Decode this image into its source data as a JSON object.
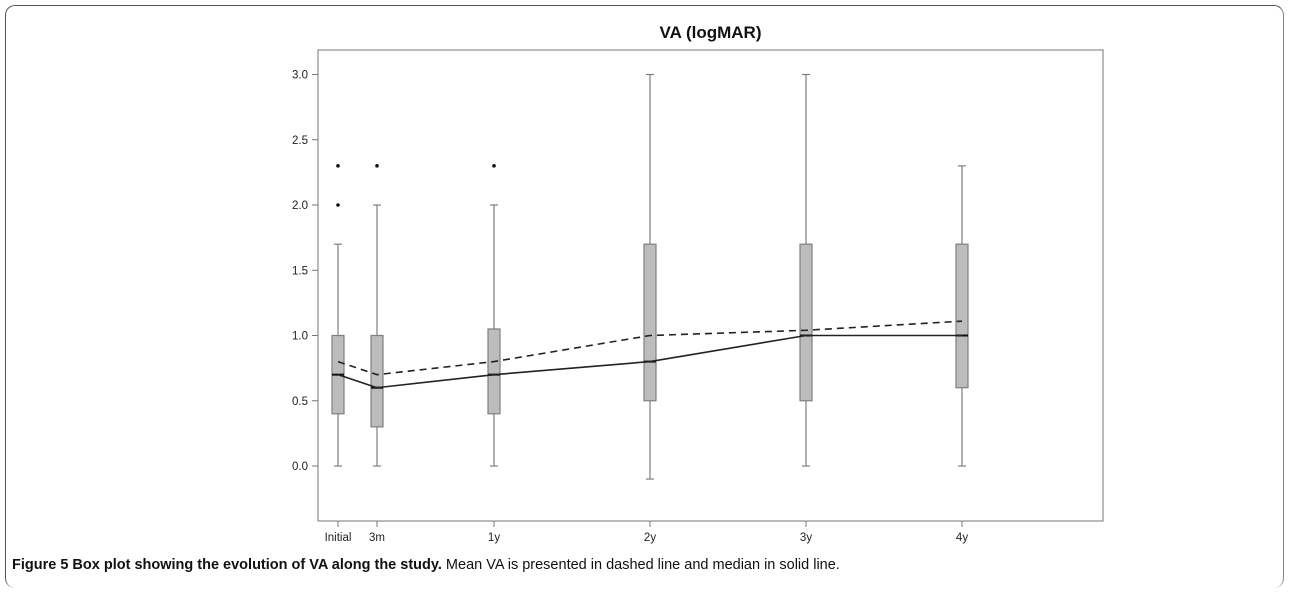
{
  "chart_data": {
    "type": "box",
    "title": "VA (logMAR)",
    "xlabel": "",
    "ylabel": "",
    "ylim": [
      -0.45,
      3.1
    ],
    "yticks": [
      "0.0",
      "0.5",
      "1.0",
      "1.5",
      "2.0",
      "2.5",
      "3.0"
    ],
    "x_scale": "time (months, proportional)",
    "categories": [
      "Initial",
      "3m",
      "1y",
      "2y",
      "3y",
      "4y"
    ],
    "x_months": [
      0,
      3,
      12,
      24,
      36,
      48
    ],
    "boxes": [
      {
        "label": "Initial",
        "min": 0.0,
        "q1": 0.4,
        "median": 0.7,
        "q3": 1.0,
        "max": 1.7,
        "outliers": [
          2.0,
          2.3
        ]
      },
      {
        "label": "3m",
        "min": 0.0,
        "q1": 0.3,
        "median": 0.6,
        "q3": 1.0,
        "max": 2.0,
        "outliers": [
          2.3
        ]
      },
      {
        "label": "1y",
        "min": 0.0,
        "q1": 0.4,
        "median": 0.7,
        "q3": 1.05,
        "max": 2.0,
        "outliers": [
          2.3
        ]
      },
      {
        "label": "2y",
        "min": -0.1,
        "q1": 0.5,
        "median": 0.8,
        "q3": 1.7,
        "max": 3.0,
        "outliers": []
      },
      {
        "label": "3y",
        "min": 0.0,
        "q1": 0.5,
        "median": 1.0,
        "q3": 1.7,
        "max": 3.0,
        "outliers": []
      },
      {
        "label": "4y",
        "min": 0.0,
        "q1": 0.6,
        "median": 1.0,
        "q3": 1.7,
        "max": 2.3,
        "outliers": []
      }
    ],
    "series": [
      {
        "style": "dashed",
        "values": [
          0.8,
          0.7,
          0.8,
          1.0,
          1.04,
          1.11
        ]
      },
      {
        "style": "solid",
        "values": [
          0.7,
          0.6,
          0.7,
          0.8,
          1.0,
          1.0
        ]
      }
    ],
    "colors": {
      "box_fill": "#bcbcbc",
      "stroke": "#7f7f7f",
      "line": "#222222"
    }
  },
  "caption": {
    "bold": "Figure 5 Box plot showing the evolution of VA along the study.",
    "text": " Mean VA is presented in dashed line and median in solid line."
  }
}
